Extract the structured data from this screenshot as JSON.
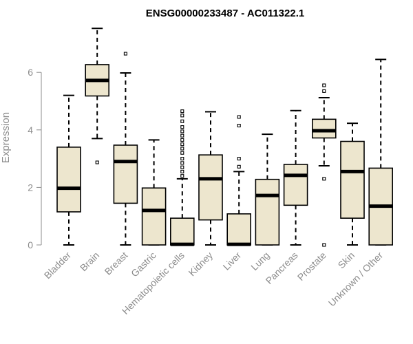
{
  "chart_data": {
    "type": "box",
    "title": "ENSG00000233487 - AC011322.1",
    "xlabel": "",
    "ylabel": "Expression",
    "ylim": [
      0,
      7.5
    ],
    "yticks": [
      0,
      2,
      4,
      6
    ],
    "grid": false,
    "box_fill": "#ede6ce",
    "box_stroke": "#000000",
    "axis_color": "#8c8c8c",
    "categories": [
      "Bladder",
      "Brain",
      "Breast",
      "Gastric",
      "Hematopoietic cells",
      "Kidney",
      "Liver",
      "Lung",
      "Pancreas",
      "Prostate",
      "Skin",
      "Unknown / Other"
    ],
    "boxes": [
      {
        "min": 0.0,
        "q1": 1.15,
        "median": 1.97,
        "q3": 3.4,
        "max": 5.2,
        "outliers": []
      },
      {
        "min": 3.7,
        "q1": 5.18,
        "median": 5.72,
        "q3": 6.27,
        "max": 7.53,
        "outliers": [
          2.87
        ]
      },
      {
        "min": 0.0,
        "q1": 1.45,
        "median": 2.9,
        "q3": 3.47,
        "max": 5.98,
        "outliers": [
          6.65
        ]
      },
      {
        "min": 0.0,
        "q1": 0.0,
        "median": 1.2,
        "q3": 1.98,
        "max": 3.65,
        "outliers": []
      },
      {
        "min": 0.0,
        "q1": 0.0,
        "median": 0.02,
        "q3": 0.93,
        "max": 2.3,
        "outliers": [
          2.4,
          2.55,
          2.7,
          2.85,
          3.0,
          3.2,
          3.35,
          3.5,
          3.65,
          3.8,
          3.95,
          4.1,
          4.3,
          4.5,
          4.65
        ]
      },
      {
        "min": 0.0,
        "q1": 0.87,
        "median": 2.3,
        "q3": 3.13,
        "max": 4.63,
        "outliers": []
      },
      {
        "min": 0.0,
        "q1": 0.0,
        "median": 0.02,
        "q3": 1.08,
        "max": 2.55,
        "outliers": [
          2.72,
          3.0,
          4.15,
          4.45
        ]
      },
      {
        "min": 0.0,
        "q1": 0.0,
        "median": 1.72,
        "q3": 2.28,
        "max": 3.85,
        "outliers": []
      },
      {
        "min": 0.0,
        "q1": 1.38,
        "median": 2.42,
        "q3": 2.8,
        "max": 4.67,
        "outliers": []
      },
      {
        "min": 2.75,
        "q1": 3.72,
        "median": 3.97,
        "q3": 4.37,
        "max": 5.12,
        "outliers": [
          0.0,
          2.3,
          5.35,
          5.55
        ]
      },
      {
        "min": 0.0,
        "q1": 0.93,
        "median": 2.55,
        "q3": 3.6,
        "max": 4.23,
        "outliers": []
      },
      {
        "min": 0.0,
        "q1": 0.0,
        "median": 1.35,
        "q3": 2.67,
        "max": 6.45,
        "outliers": []
      }
    ]
  }
}
